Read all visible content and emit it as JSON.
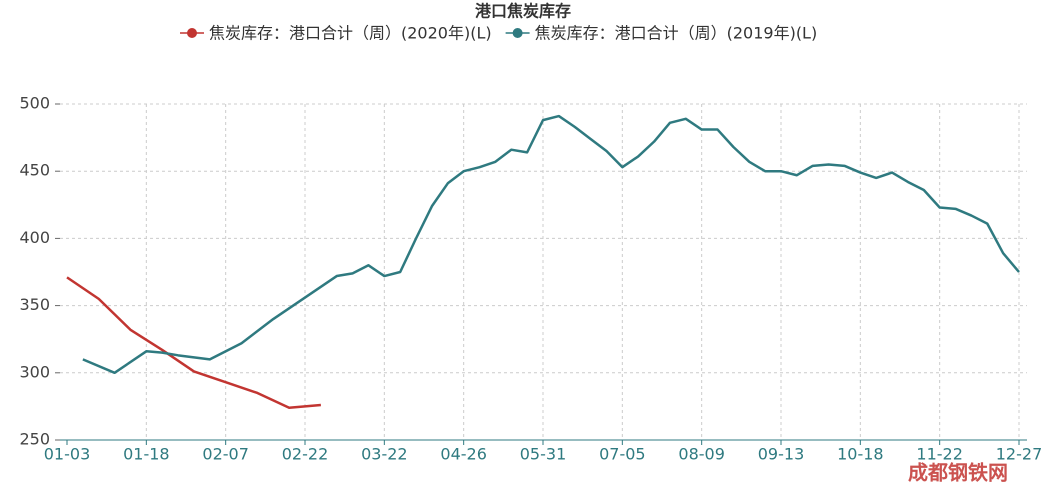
{
  "chart_data": {
    "type": "line",
    "title": "港口焦炭库存",
    "categories": [
      "01-03",
      null,
      null,
      null,
      null,
      "01-18",
      null,
      null,
      null,
      null,
      "02-07",
      null,
      null,
      null,
      null,
      "02-22",
      null,
      null,
      null,
      null,
      "03-22",
      null,
      null,
      null,
      null,
      "04-26",
      null,
      null,
      null,
      null,
      "05-31",
      null,
      null,
      null,
      null,
      "07-05",
      null,
      null,
      null,
      null,
      "08-09",
      null,
      null,
      null,
      null,
      "09-13",
      null,
      null,
      null,
      null,
      "10-18",
      null,
      null,
      null,
      null,
      "11-22",
      null,
      null,
      null,
      null,
      "12-27"
    ],
    "series": [
      {
        "name": "焦炭库存：港口合计（周）(2020年)(L)",
        "color": "#c23531",
        "values": [
          371,
          null,
          355,
          null,
          332,
          null,
          317,
          null,
          301,
          null,
          293,
          null,
          285,
          null,
          274,
          null,
          276,
          null,
          null,
          null,
          null,
          null,
          null,
          null,
          null,
          null,
          null,
          null,
          null,
          null,
          null,
          null,
          null,
          null,
          null,
          null,
          null,
          null,
          null,
          null,
          null,
          null,
          null,
          null,
          null,
          null,
          null,
          null,
          null,
          null,
          null,
          null,
          null,
          null,
          null,
          null,
          null,
          null,
          null,
          null,
          null
        ]
      },
      {
        "name": "焦炭库存：港口合计（周）(2019年)(L)",
        "color": "#2f7a80",
        "values": [
          null,
          310,
          null,
          300,
          null,
          316,
          315,
          313,
          null,
          310,
          null,
          322,
          null,
          340,
          null,
          356,
          null,
          372,
          374,
          380,
          372,
          375,
          400,
          424,
          441,
          450,
          453,
          457,
          466,
          464,
          488,
          491,
          483,
          474,
          465,
          453,
          461,
          472,
          486,
          489,
          481,
          481,
          468,
          457,
          450,
          450,
          447,
          454,
          455,
          454,
          449,
          445,
          449,
          442,
          436,
          423,
          422,
          417,
          411,
          389,
          375
        ]
      }
    ],
    "ylim": [
      250,
      500
    ],
    "yticks": [
      250,
      300,
      350,
      400,
      450,
      500
    ],
    "grid": true,
    "connect_nulls": true,
    "watermark": "成都钢铁网"
  }
}
